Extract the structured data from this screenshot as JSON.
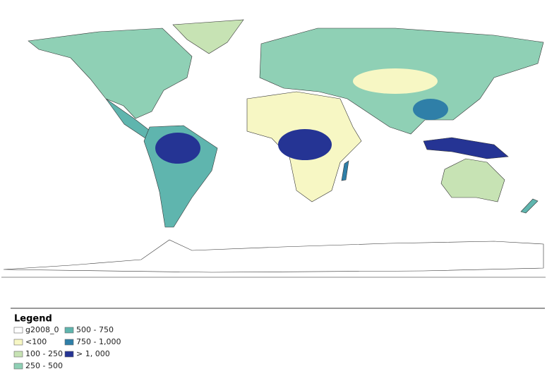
{
  "legend": {
    "title": "Legend",
    "items": [
      {
        "label": "g2008_0",
        "color": "#ffffff"
      },
      {
        "label": "<100",
        "color": "#f7f7c4"
      },
      {
        "label": "100 - 250",
        "color": "#c7e3b4"
      },
      {
        "label": "250 - 500",
        "color": "#8fd0b5"
      },
      {
        "label": "500 - 750",
        "color": "#5fb5ae"
      },
      {
        "label": "750 - 1,000",
        "color": "#2f7fa8"
      },
      {
        "label": "> 1, 000",
        "color": "#253494"
      }
    ]
  }
}
